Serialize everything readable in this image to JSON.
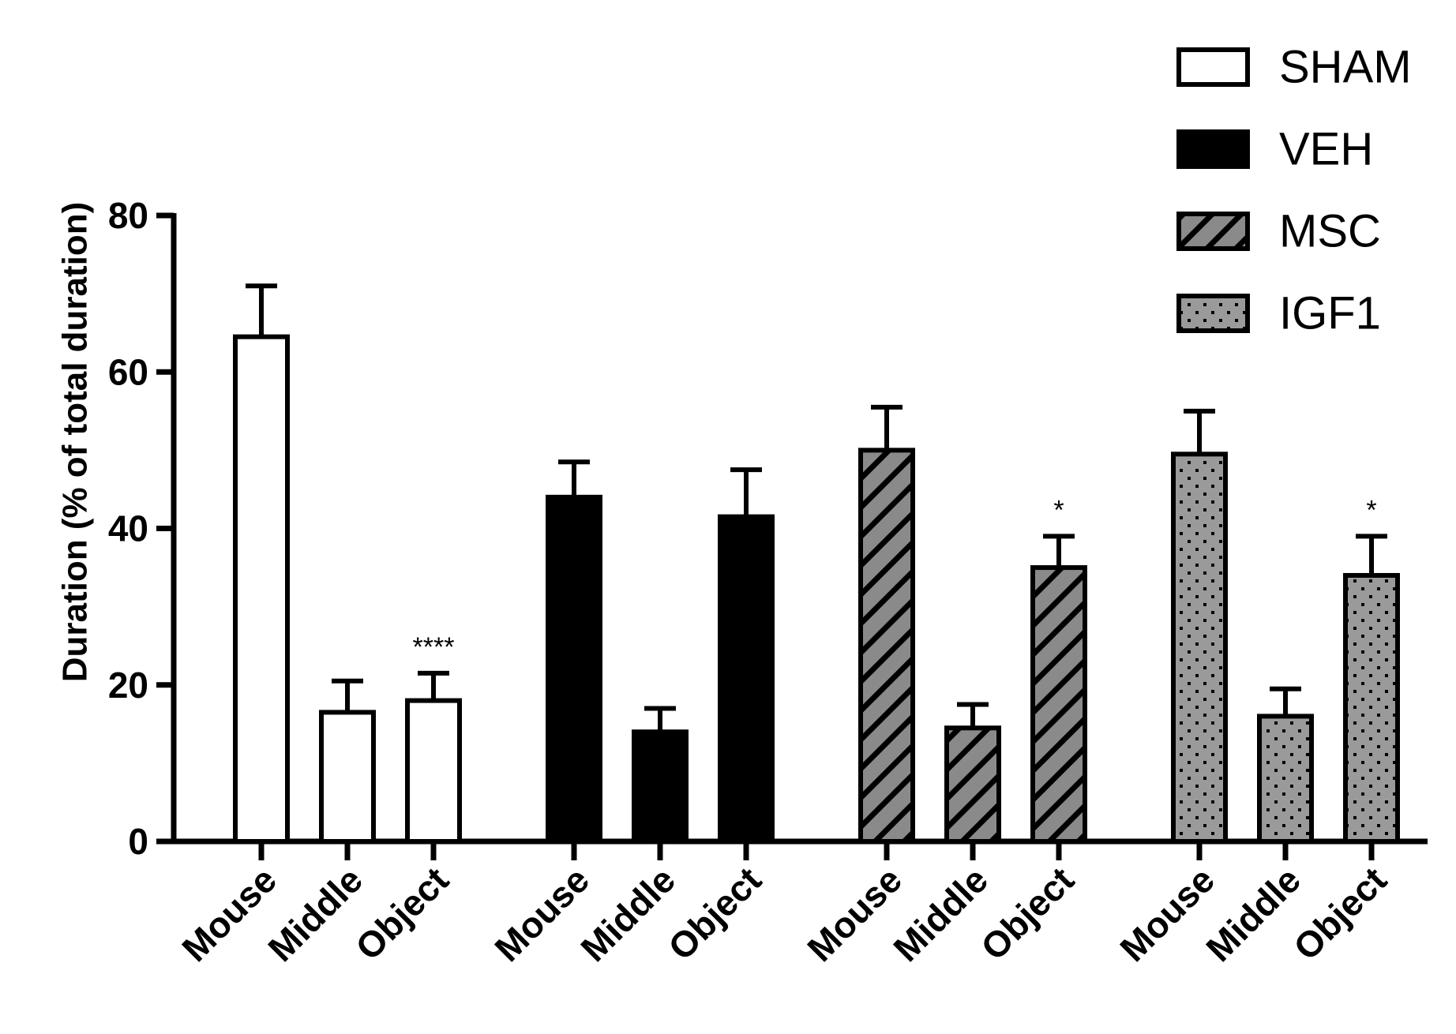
{
  "chart_data": {
    "type": "bar",
    "xlabel": "",
    "ylabel": "Duration (% of total duration)",
    "ylim": [
      0,
      80
    ],
    "yticks": [
      "0",
      "20",
      "40",
      "60",
      "80"
    ],
    "grid": false,
    "legend_position": "top-right",
    "categories": [
      "Mouse",
      "Middle",
      "Object"
    ],
    "series": [
      {
        "name": "SHAM",
        "pattern": "open",
        "fill": "#ffffff",
        "values": [
          64.5,
          16.5,
          18.0
        ],
        "errors": [
          6.5,
          4.0,
          3.5
        ],
        "annotations": [
          "",
          "",
          "****"
        ]
      },
      {
        "name": "VEH",
        "pattern": "solid",
        "fill": "#000000",
        "values": [
          44.0,
          14.0,
          41.5
        ],
        "errors": [
          4.5,
          3.0,
          6.0
        ],
        "annotations": [
          "",
          "",
          ""
        ]
      },
      {
        "name": "MSC",
        "pattern": "hatch",
        "fill": "#8a8a8a",
        "values": [
          50.0,
          14.5,
          35.0
        ],
        "errors": [
          5.5,
          3.0,
          4.0
        ],
        "annotations": [
          "",
          "",
          "*"
        ]
      },
      {
        "name": "IGF1",
        "pattern": "dotted",
        "fill": "#9a9a9a",
        "values": [
          49.5,
          16.0,
          34.0
        ],
        "errors": [
          5.5,
          3.5,
          5.0
        ],
        "annotations": [
          "",
          "",
          "*"
        ]
      }
    ]
  }
}
